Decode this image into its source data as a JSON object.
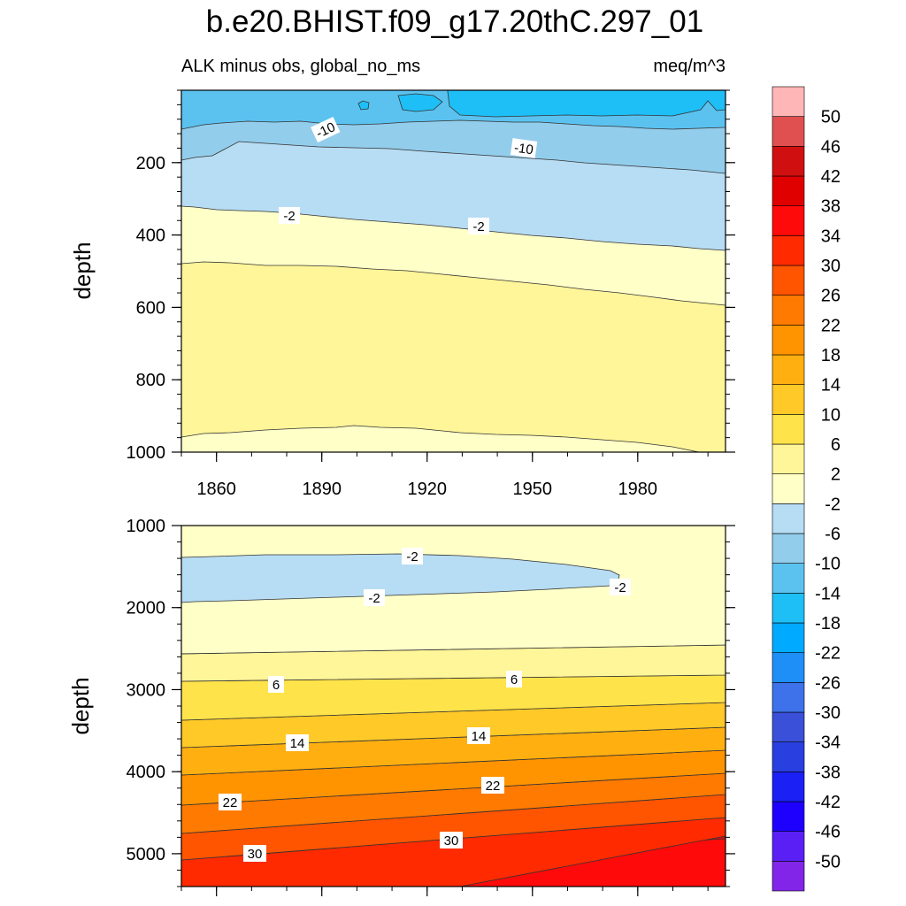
{
  "chart_data": {
    "type": "filled-contour",
    "title": "b.e20.BHIST.f09_g17.20thC.297_01",
    "subtitle_left": "ALK minus obs, global_no_ms",
    "subtitle_right": "meq/m^3",
    "colorbar": {
      "levels": [
        -50,
        -46,
        -42,
        -38,
        -34,
        -30,
        -26,
        -22,
        -18,
        -14,
        -10,
        -6,
        -2,
        2,
        6,
        10,
        14,
        18,
        22,
        26,
        30,
        34,
        38,
        42,
        46,
        50
      ],
      "colors": [
        "#8225e8",
        "#5a1ff5",
        "#1e00ff",
        "#1b20f4",
        "#2a3fe0",
        "#3a50d8",
        "#3d72ea",
        "#1e8ff7",
        "#00aaff",
        "#1ebff7",
        "#5bc2f0",
        "#93cdec",
        "#b7ddf4",
        "#ffffc8",
        "#fff599",
        "#ffe34a",
        "#ffc928",
        "#ffb010",
        "#ff9400",
        "#ff7a00",
        "#ff5400",
        "#ff2a00",
        "#ff0a0a",
        "#e00000",
        "#d01010",
        "#e05050",
        "#ffb6b6"
      ]
    },
    "panels": [
      {
        "name": "upper-ocean",
        "ylabel": "depth",
        "ylim": [
          0,
          1000
        ],
        "y_inverted": true,
        "yticks": [
          200,
          400,
          600,
          800,
          1000
        ],
        "xlim": [
          1850,
          2005
        ],
        "xticks": [
          1860,
          1890,
          1920,
          1950,
          1980
        ],
        "contour_labels": [
          "-10",
          "-10",
          "-2",
          "-2"
        ]
      },
      {
        "name": "deep-ocean",
        "ylabel": "depth",
        "ylim": [
          1000,
          5400
        ],
        "y_inverted": true,
        "yticks": [
          1000,
          2000,
          3000,
          4000,
          5000
        ],
        "xlim": [
          1850,
          2005
        ],
        "contour_labels": [
          "-2",
          "-2",
          "-2",
          "6",
          "6",
          "14",
          "14",
          "22",
          "22",
          "30",
          "30"
        ]
      }
    ]
  }
}
